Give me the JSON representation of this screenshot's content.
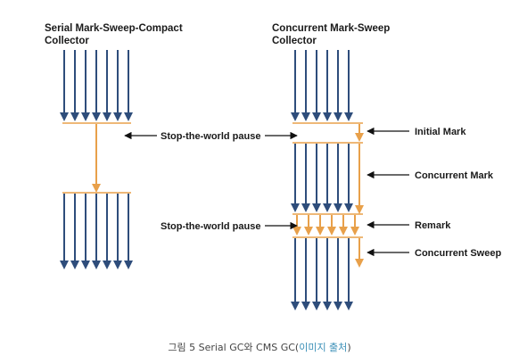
{
  "titles": {
    "serial_line1": "Serial Mark-Sweep-Compact",
    "serial_line2": "Collector",
    "cms_line1": "Concurrent Mark-Sweep",
    "cms_line2": "Collector"
  },
  "labels": {
    "stw_pause_top": "Stop-the-world pause",
    "stw_pause_bottom": "Stop-the-world pause",
    "initial_mark": "Initial Mark",
    "concurrent_mark": "Concurrent Mark",
    "remark": "Remark",
    "concurrent_sweep": "Concurrent Sweep"
  },
  "caption": {
    "prefix": "그림 5 Serial GC와 CMS GC(",
    "source": "이미지 출처",
    "suffix": ")"
  },
  "colors": {
    "app_thread": "#2e4d7b",
    "gc_thread": "#e8a04a",
    "pointer_arrow": "#111111"
  }
}
